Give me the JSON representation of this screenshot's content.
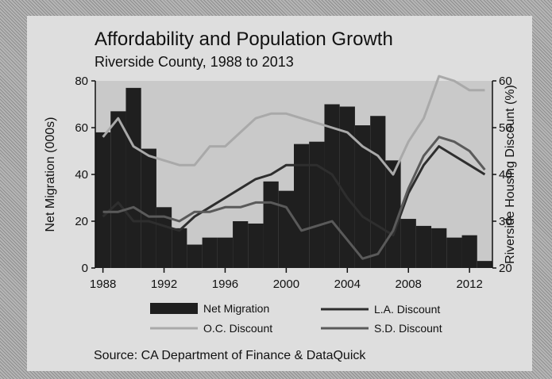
{
  "chart_data": {
    "type": "bar+line",
    "title": "Affordability and Population Growth",
    "subtitle": "Riverside County, 1988 to 2013",
    "ylabel_left": "Net Migration (000s)",
    "ylabel_right": "Riverside Housing Discount (%)",
    "ylim_left": [
      0,
      80
    ],
    "ylim_right": [
      20,
      60
    ],
    "x_ticks": [
      "1988",
      "1992",
      "1996",
      "2000",
      "2004",
      "2008",
      "2012"
    ],
    "y_ticks_left": [
      "0",
      "20",
      "40",
      "60",
      "80"
    ],
    "y_ticks_right": [
      "20",
      "30",
      "40",
      "50",
      "60"
    ],
    "x": [
      1988,
      1989,
      1990,
      1991,
      1992,
      1993,
      1994,
      1995,
      1996,
      1997,
      1998,
      1999,
      2000,
      2001,
      2002,
      2003,
      2004,
      2005,
      2006,
      2007,
      2008,
      2009,
      2010,
      2011,
      2012,
      2013
    ],
    "bars": {
      "name": "Net Migration",
      "values": [
        58,
        67,
        77,
        51,
        26,
        17,
        10,
        13,
        13,
        20,
        19,
        37,
        33,
        53,
        54,
        70,
        69,
        61,
        65,
        46,
        21,
        18,
        17,
        13,
        14,
        3
      ]
    },
    "series": [
      {
        "name": "O.C. Discount",
        "color": "#a9a9a9",
        "values": [
          48,
          52,
          46,
          44,
          43,
          42,
          42,
          46,
          46,
          49,
          52,
          53,
          53,
          52,
          51,
          50,
          49,
          46,
          44,
          40,
          47,
          52,
          61,
          60,
          58,
          58
        ]
      },
      {
        "name": "L.A. Discount",
        "color": "#2e2e2e",
        "values": [
          31,
          34,
          30,
          30,
          29,
          28,
          31,
          33,
          35,
          37,
          39,
          40,
          42,
          42,
          42,
          40,
          35,
          31,
          29,
          27,
          36,
          42,
          46,
          44,
          42,
          40
        ]
      },
      {
        "name": "S.D. Discount",
        "color": "#5a5a5a",
        "values": [
          32,
          32,
          33,
          31,
          31,
          30,
          32,
          32,
          33,
          33,
          34,
          34,
          33,
          28,
          29,
          30,
          26,
          22,
          23,
          28,
          37,
          44,
          48,
          47,
          45,
          41
        ]
      }
    ],
    "legend_position": "bottom",
    "grid": false
  },
  "source": "Source: CA Department of Finance & DataQuick"
}
